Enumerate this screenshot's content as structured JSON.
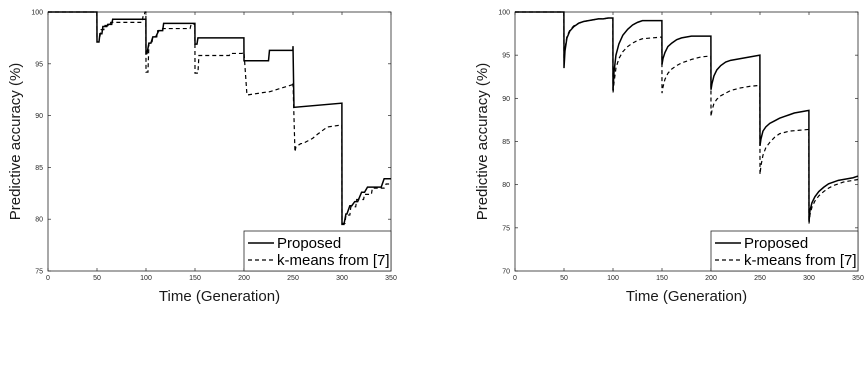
{
  "chart_data": [
    {
      "type": "line",
      "title": "",
      "xlabel": "Time (Generation)",
      "ylabel": "Predictive accuracy (%)",
      "xlim": [
        0,
        350
      ],
      "ylim": [
        75,
        100
      ],
      "xticks": [
        0,
        50,
        100,
        150,
        200,
        250,
        300,
        350
      ],
      "yticks": [
        75,
        80,
        85,
        90,
        95,
        100
      ],
      "grid": false,
      "legend_position": "bottom-right",
      "series": [
        {
          "name": "Proposed",
          "style": "solid",
          "x": [
            0,
            49.9,
            50,
            52,
            53,
            55,
            56,
            60,
            61,
            65,
            66,
            99.9,
            100,
            101,
            103,
            105,
            107,
            110,
            113,
            117,
            118,
            145,
            146,
            149.9,
            150,
            152,
            153,
            199.9,
            200,
            201,
            225,
            226,
            249.9,
            250,
            251,
            299.9,
            300,
            302,
            304,
            305,
            308,
            310,
            313,
            316,
            320,
            323,
            326,
            330,
            335,
            340,
            343,
            345,
            348,
            350
          ],
          "y": [
            100,
            100,
            97.1,
            97.1,
            97.9,
            97.9,
            98.6,
            98.6,
            98.8,
            98.8,
            99.3,
            99.3,
            96.0,
            96.0,
            97.0,
            97.0,
            97.6,
            97.6,
            98.2,
            98.2,
            98.9,
            98.9,
            98.9,
            98.9,
            96.9,
            96.9,
            97.5,
            97.5,
            95.3,
            95.3,
            95.3,
            96.3,
            96.3,
            96.7,
            90.8,
            91.2,
            79.5,
            79.5,
            80.5,
            80.5,
            81.3,
            81.3,
            81.7,
            81.7,
            82.6,
            82.6,
            83.1,
            83.1,
            83.1,
            83.1,
            83.9,
            83.9,
            83.9,
            83.9
          ]
        },
        {
          "name": "k-means from [7]",
          "style": "dashed",
          "x": [
            0,
            49.9,
            50,
            53,
            54,
            57,
            58,
            63,
            64,
            95,
            96,
            97,
            98,
            99,
            99.9,
            100,
            102,
            103,
            106,
            107,
            111,
            112,
            116,
            117,
            145,
            146,
            149.9,
            150,
            153,
            154,
            185,
            186,
            198,
            199.9,
            200,
            203,
            204,
            225,
            226,
            249.9,
            250,
            252,
            253,
            258,
            260,
            270,
            275,
            285,
            299.9,
            300,
            303,
            304,
            308,
            309,
            314,
            315,
            322,
            323,
            330,
            331,
            340,
            343,
            345,
            350
          ],
          "y": [
            100,
            100,
            97.6,
            97.6,
            98.3,
            98.3,
            98.7,
            98.7,
            99.0,
            99.0,
            99.0,
            99.6,
            99.6,
            100,
            100,
            94.2,
            94.2,
            97.0,
            97.0,
            97.6,
            97.6,
            98.2,
            98.2,
            98.4,
            98.4,
            98.8,
            98.8,
            94.1,
            94.1,
            95.8,
            95.8,
            96.0,
            96.0,
            96.1,
            96.1,
            92.0,
            92.0,
            92.3,
            92.3,
            93.0,
            93.2,
            86.5,
            87.0,
            87.3,
            87.3,
            87.8,
            88.2,
            88.9,
            89.1,
            79.6,
            79.6,
            80.4,
            80.4,
            81.2,
            81.2,
            81.9,
            81.9,
            82.4,
            82.4,
            83.0,
            83.0,
            83.0,
            83.4,
            83.4
          ]
        }
      ]
    },
    {
      "type": "line",
      "title": "",
      "xlabel": "Time (Generation)",
      "ylabel": "Predictive accuracy (%)",
      "xlim": [
        0,
        350
      ],
      "ylim": [
        70,
        100
      ],
      "xticks": [
        0,
        50,
        100,
        150,
        200,
        250,
        300,
        350
      ],
      "yticks": [
        70,
        75,
        80,
        85,
        90,
        95,
        100
      ],
      "grid": false,
      "legend_position": "bottom-right",
      "series": [
        {
          "name": "Proposed",
          "style": "solid",
          "x": [
            0,
            49.9,
            50,
            51,
            53,
            56,
            60,
            65,
            70,
            75,
            80,
            85,
            90,
            95,
            99.9,
            100,
            101,
            103,
            106,
            110,
            115,
            120,
            125,
            130,
            149.9,
            150,
            151,
            153,
            156,
            160,
            165,
            170,
            175,
            180,
            185,
            199.9,
            200,
            201,
            203,
            206,
            210,
            215,
            220,
            225,
            230,
            235,
            240,
            249.9,
            250,
            251,
            253,
            256,
            260,
            265,
            270,
            275,
            280,
            285,
            290,
            295,
            299.9,
            300,
            301,
            303,
            306,
            310,
            315,
            320,
            325,
            330,
            335,
            340,
            345,
            350
          ],
          "y": [
            100,
            100,
            93.5,
            95.5,
            97.0,
            97.8,
            98.3,
            98.7,
            98.9,
            99.0,
            99.1,
            99.2,
            99.2,
            99.3,
            99.3,
            90.9,
            93.0,
            95.0,
            96.3,
            97.3,
            98.0,
            98.5,
            98.8,
            99.0,
            99.0,
            93.9,
            94.6,
            95.3,
            96.0,
            96.4,
            96.8,
            97.0,
            97.1,
            97.2,
            97.2,
            97.2,
            91.0,
            91.7,
            92.6,
            93.3,
            93.8,
            94.2,
            94.4,
            94.5,
            94.6,
            94.7,
            94.8,
            95.0,
            84.5,
            85.3,
            86.2,
            86.7,
            87.1,
            87.4,
            87.7,
            87.9,
            88.1,
            88.3,
            88.4,
            88.5,
            88.6,
            75.7,
            77.0,
            77.9,
            78.6,
            79.2,
            79.7,
            80.1,
            80.3,
            80.5,
            80.6,
            80.7,
            80.8,
            81.0
          ]
        },
        {
          "name": "k-means from [7]",
          "style": "dashed",
          "x": [
            0,
            49.9,
            50,
            51,
            53,
            56,
            60,
            65,
            70,
            75,
            80,
            85,
            90,
            95,
            99.9,
            100,
            101,
            103,
            106,
            110,
            115,
            120,
            125,
            130,
            140,
            149.9,
            150,
            151,
            153,
            156,
            160,
            165,
            170,
            180,
            190,
            199.9,
            200,
            201,
            203,
            206,
            210,
            215,
            220,
            230,
            240,
            249.9,
            250,
            251,
            253,
            256,
            260,
            265,
            270,
            280,
            290,
            299.9,
            300,
            301,
            303,
            306,
            310,
            315,
            320,
            325,
            330,
            335,
            340,
            345,
            350
          ],
          "y": [
            100,
            100,
            94.3,
            95.8,
            97.2,
            97.9,
            98.4,
            98.7,
            98.9,
            99.0,
            99.1,
            99.2,
            99.2,
            99.3,
            99.3,
            90.6,
            91.8,
            93.5,
            94.6,
            95.4,
            96.0,
            96.4,
            96.7,
            96.9,
            97.0,
            97.1,
            90.6,
            91.3,
            92.2,
            92.9,
            93.4,
            93.8,
            94.1,
            94.5,
            94.8,
            94.9,
            87.9,
            88.6,
            89.4,
            89.9,
            90.3,
            90.6,
            90.9,
            91.2,
            91.4,
            91.5,
            81.2,
            82.2,
            83.4,
            84.3,
            84.9,
            85.5,
            85.9,
            86.2,
            86.3,
            86.4,
            75.5,
            76.5,
            77.4,
            78.1,
            78.7,
            79.2,
            79.6,
            79.9,
            80.1,
            80.3,
            80.4,
            80.5,
            80.6
          ]
        }
      ]
    }
  ]
}
